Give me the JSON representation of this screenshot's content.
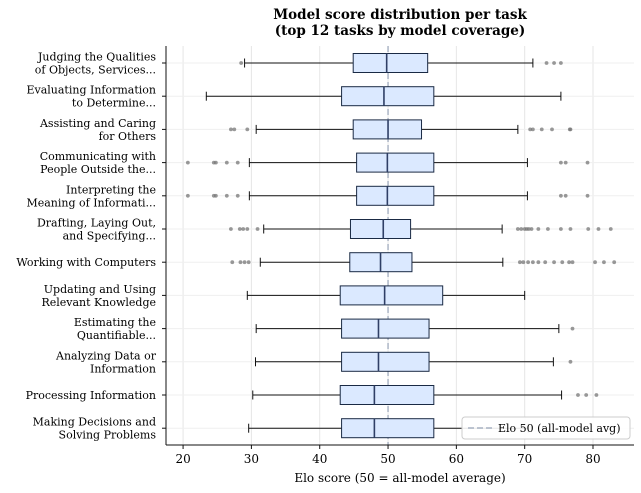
{
  "chart_data": {
    "type": "boxplot",
    "orientation": "horizontal",
    "title": [
      "Model score distribution per task",
      "(top 12 tasks by model coverage)"
    ],
    "xlabel": "Elo score (50 = all-model average)",
    "xlim": [
      17.5,
      86
    ],
    "xticks": [
      20,
      30,
      40,
      50,
      60,
      70,
      80
    ],
    "grid": "vertical",
    "reference_line": {
      "x": 50,
      "label": "Elo 50 (all-model avg)"
    },
    "legend_position": "bottom-right",
    "colors": {
      "box_fill": "#dbe9ff",
      "box_edge": "#1a2a44",
      "median": "#2f3f66",
      "reference": "#a7b1c2",
      "outlier": "#777777",
      "grid": "#e6e6e6"
    },
    "categories": [
      {
        "label": [
          "Judging the Qualities",
          "of Objects, Services..."
        ],
        "whisker_low": 29,
        "q1": 44.9,
        "median": 49.8,
        "q3": 55.8,
        "whisker_high": 71.2,
        "outliers": [
          28.5,
          73.2,
          74.3,
          75.3
        ]
      },
      {
        "label": [
          "Evaluating Information",
          "to Determine..."
        ],
        "whisker_low": 23.4,
        "q1": 43.2,
        "median": 49.4,
        "q3": 56.7,
        "whisker_high": 75.3,
        "outliers": []
      },
      {
        "label": [
          "Assisting and Caring",
          "for Others"
        ],
        "whisker_low": 30.7,
        "q1": 44.9,
        "median": 50,
        "q3": 54.9,
        "whisker_high": 69,
        "outliers": [
          27,
          27.5,
          29.4,
          70.8,
          71.2,
          72.5,
          74,
          76.6,
          76.7
        ]
      },
      {
        "label": [
          "Communicating with",
          "People Outside the..."
        ],
        "whisker_low": 29.7,
        "q1": 45.4,
        "median": 49.9,
        "q3": 56.7,
        "whisker_high": 70.4,
        "outliers": [
          20.7,
          24.5,
          24.8,
          26.4,
          28,
          75.3,
          76,
          79.2
        ]
      },
      {
        "label": [
          "Interpreting the",
          "Meaning of Informati..."
        ],
        "whisker_low": 29.7,
        "q1": 45.4,
        "median": 49.9,
        "q3": 56.7,
        "whisker_high": 70.4,
        "outliers": [
          20.7,
          24.5,
          24.8,
          26.4,
          28,
          75.3,
          76,
          79.2
        ]
      },
      {
        "label": [
          "Drafting, Laying Out,",
          "and Specifying..."
        ],
        "whisker_low": 31.8,
        "q1": 44.5,
        "median": 49.3,
        "q3": 53.3,
        "whisker_high": 66.7,
        "outliers": [
          27,
          28.3,
          28.8,
          29.4,
          30.9,
          69,
          69.5,
          70,
          70.3,
          70.6,
          71,
          72,
          73.4,
          75.3,
          76.7,
          79.3,
          80.8,
          82.6
        ]
      },
      {
        "label": [
          "Working with Computers"
        ],
        "whisker_low": 31.3,
        "q1": 44.4,
        "median": 48.9,
        "q3": 53.5,
        "whisker_high": 66.8,
        "outliers": [
          27.2,
          28.4,
          29,
          29.6,
          69.3,
          69.8,
          70.5,
          71.2,
          72,
          73,
          74.3,
          75.5,
          76.5,
          77,
          80.3,
          81.6,
          83.1
        ]
      },
      {
        "label": [
          "Updating and Using",
          "Relevant Knowledge"
        ],
        "whisker_low": 29.4,
        "q1": 43,
        "median": 49.5,
        "q3": 58,
        "whisker_high": 70,
        "outliers": []
      },
      {
        "label": [
          "Estimating the",
          "Quantifiable..."
        ],
        "whisker_low": 30.7,
        "q1": 43.2,
        "median": 48.6,
        "q3": 56,
        "whisker_high": 75,
        "outliers": [
          77
        ]
      },
      {
        "label": [
          "Analyzing Data or",
          "Information"
        ],
        "whisker_low": 30.6,
        "q1": 43.2,
        "median": 48.6,
        "q3": 56,
        "whisker_high": 74.2,
        "outliers": [
          76.7
        ]
      },
      {
        "label": [
          "Processing Information"
        ],
        "whisker_low": 30.2,
        "q1": 43,
        "median": 48,
        "q3": 56.7,
        "whisker_high": 75.4,
        "outliers": [
          77.8,
          79,
          80.5
        ]
      },
      {
        "label": [
          "Making Decisions and",
          "Solving Problems"
        ],
        "whisker_low": 29.6,
        "q1": 43.2,
        "median": 48,
        "q3": 56.7,
        "whisker_high": 70.5,
        "outliers": []
      }
    ]
  }
}
